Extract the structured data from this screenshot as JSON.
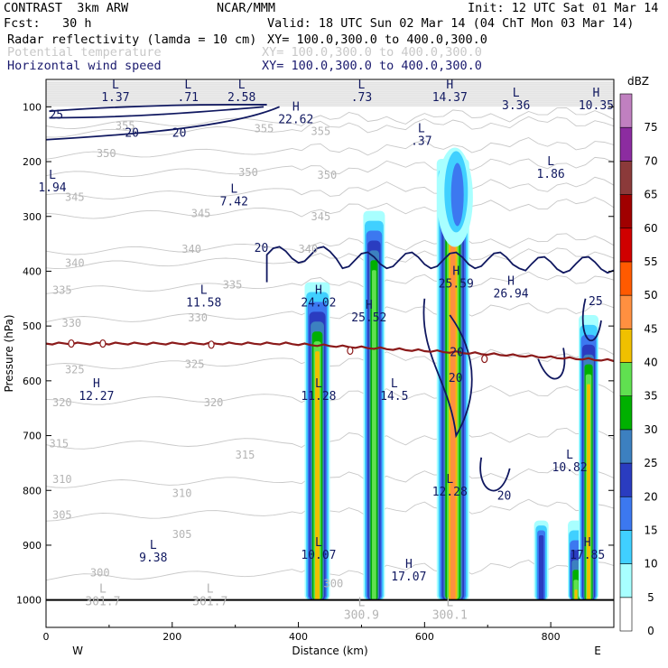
{
  "header": {
    "left1": "CONTRAST  3km ARW",
    "center1": "NCAR/MMM",
    "right1": "Init: 12 UTC Sat 01 Mar 14",
    "left2": "Fcst:   30 h",
    "right2": "Valid: 18 UTC Sun 02 Mar 14 (04 ChT Mon 03 Mar 14)",
    "field1": "Radar reflectivity (lamda = 10 cm)",
    "xy1": "XY= 100.0,300.0 to 400.0,300.0",
    "field2": "Potential temperature",
    "xy2": "XY= 100.0,300.0 to 400.0,300.0",
    "field3": "Horizontal wind speed",
    "xy3": "XY= 100.0,300.0 to 400.0,300.0"
  },
  "colors": {
    "theta": "#c8c8c8",
    "wind": "#101860",
    "freezing": "#8b1a1a",
    "ground": "#000000"
  },
  "chart_data": {
    "type": "cross-section",
    "xlabel": "Distance (km)",
    "ylabel": "Pressure (hPa)",
    "xlim": [
      0,
      900
    ],
    "ylim": [
      1050,
      50
    ],
    "x_ticks": [
      0,
      200,
      400,
      600,
      800
    ],
    "y_ticks": [
      100,
      200,
      300,
      400,
      500,
      600,
      700,
      800,
      900,
      1000
    ],
    "x_end_labels": {
      "left": "W",
      "right": "E"
    },
    "colorbar": {
      "unit": "dBZ",
      "levels": [
        0,
        5,
        10,
        15,
        20,
        25,
        30,
        35,
        40,
        45,
        50,
        55,
        60,
        65,
        70,
        75
      ],
      "colors": [
        "#ffffff",
        "#a8ffff",
        "#40d0ff",
        "#3c78f0",
        "#2a3cc0",
        "#3c80c0",
        "#00b000",
        "#60e050",
        "#f0c000",
        "#ff9040",
        "#ff5a00",
        "#d00000",
        "#a00000",
        "#8b3a3a",
        "#8c2ca0",
        "#c080c0"
      ]
    },
    "theta_labels": [
      {
        "x": 110,
        "p": 135,
        "v": "355"
      },
      {
        "x": 330,
        "p": 140,
        "v": "355"
      },
      {
        "x": 420,
        "p": 145,
        "v": "355"
      },
      {
        "x": 80,
        "p": 185,
        "v": "350"
      },
      {
        "x": 305,
        "p": 220,
        "v": "350"
      },
      {
        "x": 430,
        "p": 225,
        "v": "350"
      },
      {
        "x": 30,
        "p": 265,
        "v": "345"
      },
      {
        "x": 230,
        "p": 295,
        "v": "345"
      },
      {
        "x": 420,
        "p": 300,
        "v": "345"
      },
      {
        "x": 30,
        "p": 385,
        "v": "340"
      },
      {
        "x": 215,
        "p": 360,
        "v": "340"
      },
      {
        "x": 400,
        "p": 360,
        "v": "340"
      },
      {
        "x": 10,
        "p": 435,
        "v": "335"
      },
      {
        "x": 280,
        "p": 425,
        "v": "335"
      },
      {
        "x": 25,
        "p": 495,
        "v": "330"
      },
      {
        "x": 225,
        "p": 485,
        "v": "330"
      },
      {
        "x": 30,
        "p": 580,
        "v": "325"
      },
      {
        "x": 220,
        "p": 570,
        "v": "325"
      },
      {
        "x": 10,
        "p": 640,
        "v": "320"
      },
      {
        "x": 250,
        "p": 640,
        "v": "320"
      },
      {
        "x": 5,
        "p": 715,
        "v": "315"
      },
      {
        "x": 300,
        "p": 735,
        "v": "315"
      },
      {
        "x": 10,
        "p": 780,
        "v": "310"
      },
      {
        "x": 200,
        "p": 805,
        "v": "310"
      },
      {
        "x": 10,
        "p": 845,
        "v": "305"
      },
      {
        "x": 200,
        "p": 880,
        "v": "305"
      },
      {
        "x": 70,
        "p": 950,
        "v": "300"
      },
      {
        "x": 440,
        "p": 970,
        "v": "300"
      }
    ],
    "wind_labels": [
      {
        "x": 5,
        "p": 115,
        "v": "25"
      },
      {
        "x": 125,
        "p": 148,
        "v": "20"
      },
      {
        "x": 200,
        "p": 148,
        "v": "20"
      },
      {
        "x": 330,
        "p": 358,
        "v": "20"
      },
      {
        "x": 640,
        "p": 548,
        "v": "20"
      },
      {
        "x": 638,
        "p": 595,
        "v": "20"
      },
      {
        "x": 715,
        "p": 810,
        "v": "20"
      },
      {
        "x": 860,
        "p": 455,
        "v": "25"
      }
    ],
    "freezing_labels": [
      {
        "x": 40,
        "p": 532,
        "v": "0"
      },
      {
        "x": 90,
        "p": 532,
        "v": "0"
      },
      {
        "x": 262,
        "p": 534,
        "v": "0"
      },
      {
        "x": 482,
        "p": 545,
        "v": "0"
      },
      {
        "x": 695,
        "p": 560,
        "v": "0"
      }
    ],
    "extrema": [
      {
        "x": 110,
        "p": 60,
        "t": "L",
        "v": "1.37"
      },
      {
        "x": 225,
        "p": 60,
        "t": "L",
        "v": ".71"
      },
      {
        "x": 310,
        "p": 60,
        "t": "L",
        "v": "2.58"
      },
      {
        "x": 500,
        "p": 60,
        "t": "L",
        "v": ".73"
      },
      {
        "x": 640,
        "p": 60,
        "t": "H",
        "v": "14.37"
      },
      {
        "x": 745,
        "p": 75,
        "t": "L",
        "v": "3.36"
      },
      {
        "x": 872,
        "p": 75,
        "t": "H",
        "v": "10.35"
      },
      {
        "x": 396,
        "p": 100,
        "t": "H",
        "v": "22.62"
      },
      {
        "x": 595,
        "p": 140,
        "t": "L",
        "v": ".37"
      },
      {
        "x": 800,
        "p": 200,
        "t": "L",
        "v": "1.86"
      },
      {
        "x": 10,
        "p": 225,
        "t": "L",
        "v": "1.94"
      },
      {
        "x": 298,
        "p": 250,
        "t": "L",
        "v": "7.42"
      },
      {
        "x": 250,
        "p": 435,
        "t": "L",
        "v": "11.58"
      },
      {
        "x": 432,
        "p": 435,
        "t": "H",
        "v": "24.02"
      },
      {
        "x": 512,
        "p": 462,
        "t": "H",
        "v": "25.52"
      },
      {
        "x": 650,
        "p": 400,
        "t": "H",
        "v": "25.59"
      },
      {
        "x": 737,
        "p": 418,
        "t": "H",
        "v": "26.94"
      },
      {
        "x": 80,
        "p": 605,
        "t": "H",
        "v": "12.27"
      },
      {
        "x": 432,
        "p": 605,
        "t": "L",
        "v": "11.28"
      },
      {
        "x": 552,
        "p": 605,
        "t": "L",
        "v": "14.5"
      },
      {
        "x": 640,
        "p": 780,
        "t": "L",
        "v": "12.28"
      },
      {
        "x": 830,
        "p": 735,
        "t": "L",
        "v": "10.82"
      },
      {
        "x": 432,
        "p": 895,
        "t": "L",
        "v": "10.07"
      },
      {
        "x": 170,
        "p": 900,
        "t": "L",
        "v": "9.38"
      },
      {
        "x": 575,
        "p": 935,
        "t": "H",
        "v": "17.07"
      },
      {
        "x": 858,
        "p": 895,
        "t": "H",
        "v": "17.85"
      },
      {
        "x": 90,
        "p": 980,
        "t": "L",
        "v": "301.7"
      },
      {
        "x": 260,
        "p": 980,
        "t": "L",
        "v": "301.7"
      },
      {
        "x": 500,
        "p": 1005,
        "t": "L",
        "v": "300.9"
      },
      {
        "x": 640,
        "p": 1005,
        "t": "L",
        "v": "300.1"
      }
    ],
    "reflectivity_columns": [
      {
        "x": 430,
        "top": 420,
        "bottom": 1000,
        "width": 28,
        "max_dbz": 40
      },
      {
        "x": 520,
        "top": 290,
        "bottom": 1000,
        "width": 24,
        "max_dbz": 35
      },
      {
        "x": 645,
        "top": 195,
        "bottom": 1000,
        "width": 36,
        "max_dbz": 45
      },
      {
        "x": 785,
        "top": 855,
        "bottom": 1000,
        "width": 16,
        "max_dbz": 20
      },
      {
        "x": 840,
        "top": 855,
        "bottom": 1000,
        "width": 18,
        "max_dbz": 40
      },
      {
        "x": 860,
        "top": 480,
        "bottom": 1000,
        "width": 22,
        "max_dbz": 40
      }
    ]
  }
}
